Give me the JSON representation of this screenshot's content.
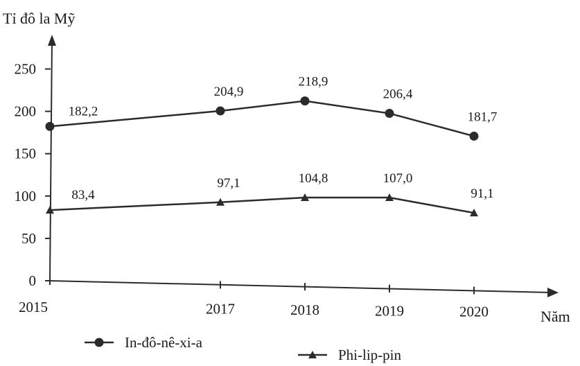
{
  "chart_data": {
    "type": "line",
    "title": "",
    "ylabel": "Tỉ đô la Mỹ",
    "xlabel": "Năm",
    "ylim": [
      0,
      250
    ],
    "yticks": [
      0,
      50,
      100,
      150,
      200,
      250
    ],
    "ytick_labels": [
      "0",
      "50",
      "100",
      "150",
      "200",
      "250"
    ],
    "x": [
      2015,
      2017,
      2018,
      2019,
      2020
    ],
    "xtick_labels": [
      "2015",
      "2017",
      "2018",
      "2019",
      "2020"
    ],
    "series": [
      {
        "name": "In-đô-nê-xi-a",
        "marker": "circle",
        "values": [
          182.2,
          204.9,
          218.9,
          206.4,
          181.7
        ],
        "labels": [
          "182,2",
          "204,9",
          "218,9",
          "206,4",
          "181,7"
        ]
      },
      {
        "name": "Phi-lip-pin",
        "marker": "triangle",
        "values": [
          83.4,
          97.1,
          104.8,
          107.0,
          91.1
        ],
        "labels": [
          "83,4",
          "97,1",
          "104,8",
          "107,0",
          "91,1"
        ]
      }
    ],
    "grid": false,
    "legend_position": "bottom",
    "line_color": "#2b2b2b"
  }
}
